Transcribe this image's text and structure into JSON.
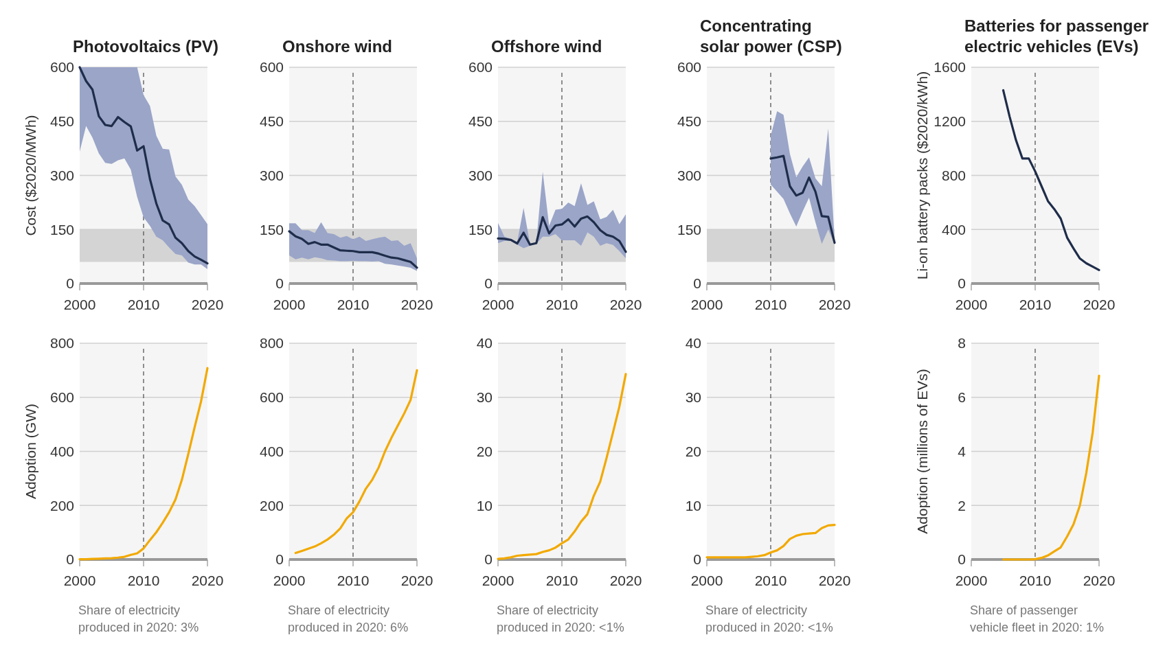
{
  "chart_data": [
    {
      "type": "line",
      "title": "Photovoltaics (PV)",
      "ylabel": "Cost ($2020/MWh)",
      "x": [
        2000,
        2001,
        2002,
        2003,
        2004,
        2005,
        2006,
        2007,
        2008,
        2009,
        2010,
        2011,
        2012,
        2013,
        2014,
        2015,
        2016,
        2017,
        2018,
        2019,
        2020
      ],
      "xlim": [
        2000,
        2020
      ],
      "xticks": [
        2000,
        2010,
        2020
      ],
      "ylim": [
        0,
        600
      ],
      "yticks": [
        0,
        150,
        300,
        450,
        600
      ],
      "grid": "y",
      "series": [
        {
          "color": "#1f2d4a",
          "values": [
            600,
            562,
            538,
            464,
            440,
            437,
            462,
            448,
            436,
            369,
            381,
            290,
            222,
            175,
            164,
            127,
            112,
            90,
            75,
            66,
            56
          ],
          "upper": [
            600,
            600,
            600,
            600,
            600,
            600,
            600,
            600,
            600,
            600,
            523,
            493,
            410,
            374,
            372,
            297,
            274,
            233,
            215,
            190,
            165
          ],
          "lower": [
            366,
            437,
            405,
            361,
            335,
            332,
            342,
            347,
            316,
            240,
            184,
            160,
            130,
            120,
            100,
            82,
            78,
            58,
            53,
            53,
            40
          ]
        }
      ],
      "bands": [
        {
          "axis": "y",
          "from": 60,
          "to": 150,
          "color": "#d4d4d4"
        }
      ],
      "ref_lines": [
        {
          "axis": "x",
          "value": 2010,
          "color": "#555555",
          "line_style": "dashed"
        }
      ]
    },
    {
      "type": "line",
      "title": "Onshore wind",
      "x": [
        2000,
        2001,
        2002,
        2003,
        2004,
        2005,
        2006,
        2007,
        2008,
        2009,
        2010,
        2011,
        2012,
        2013,
        2014,
        2015,
        2016,
        2017,
        2018,
        2019,
        2020
      ],
      "xlim": [
        2000,
        2020
      ],
      "xticks": [
        2000,
        2010,
        2020
      ],
      "ylim": [
        0,
        600
      ],
      "yticks": [
        0,
        150,
        300,
        450,
        600
      ],
      "grid": "y",
      "series": [
        {
          "color": "#1f2d4a",
          "values": [
            145,
            131,
            124,
            110,
            115,
            108,
            108,
            100,
            92,
            91,
            90,
            87,
            87,
            87,
            83,
            77,
            72,
            70,
            65,
            60,
            44
          ],
          "upper": [
            167,
            167,
            148,
            148,
            140,
            170,
            140,
            137,
            127,
            132,
            123,
            130,
            118,
            123,
            127,
            130,
            118,
            120,
            105,
            112,
            70
          ],
          "lower": [
            78,
            67,
            72,
            67,
            73,
            70,
            65,
            64,
            62,
            62,
            63,
            62,
            62,
            61,
            62,
            55,
            53,
            50,
            47,
            44,
            35
          ]
        }
      ],
      "bands": [
        {
          "axis": "y",
          "from": 60,
          "to": 150,
          "color": "#d4d4d4"
        }
      ],
      "ref_lines": [
        {
          "axis": "x",
          "value": 2010,
          "color": "#555555",
          "line_style": "dashed"
        }
      ]
    },
    {
      "type": "line",
      "title": "Offshore wind",
      "x": [
        2000,
        2001,
        2002,
        2003,
        2004,
        2005,
        2006,
        2007,
        2008,
        2009,
        2010,
        2011,
        2012,
        2013,
        2014,
        2015,
        2016,
        2017,
        2018,
        2019,
        2020
      ],
      "xlim": [
        2000,
        2020
      ],
      "xticks": [
        2000,
        2010,
        2020
      ],
      "ylim": [
        0,
        600
      ],
      "yticks": [
        0,
        150,
        300,
        450,
        600
      ],
      "grid": "y",
      "series": [
        {
          "color": "#1f2d4a",
          "values": [
            125,
            124,
            121,
            111,
            141,
            108,
            112,
            184,
            139,
            161,
            164,
            178,
            158,
            180,
            186,
            170,
            148,
            135,
            130,
            118,
            88
          ],
          "upper": [
            168,
            130,
            125,
            115,
            210,
            110,
            115,
            310,
            160,
            205,
            207,
            225,
            215,
            278,
            218,
            228,
            178,
            185,
            205,
            165,
            192
          ],
          "lower": [
            112,
            118,
            118,
            108,
            98,
            105,
            110,
            130,
            130,
            137,
            120,
            120,
            120,
            105,
            142,
            130,
            105,
            112,
            107,
            90,
            70
          ]
        }
      ],
      "bands": [
        {
          "axis": "y",
          "from": 60,
          "to": 150,
          "color": "#d4d4d4"
        }
      ],
      "ref_lines": [
        {
          "axis": "x",
          "value": 2010,
          "color": "#555555",
          "line_style": "dashed"
        }
      ]
    },
    {
      "type": "line",
      "title": "Concentrating solar power (CSP)",
      "xlim": [
        2000,
        2020
      ],
      "xticks": [
        2000,
        2010,
        2020
      ],
      "ylim": [
        0,
        600
      ],
      "yticks": [
        0,
        150,
        300,
        450,
        600
      ],
      "grid": "y",
      "series": [
        {
          "color": "#1f2d4a",
          "x": [
            2010,
            2011,
            2012,
            2013,
            2014,
            2015,
            2016,
            2017,
            2018,
            2019,
            2020
          ],
          "values": [
            347,
            350,
            354,
            270,
            244,
            252,
            294,
            255,
            187,
            185,
            113
          ],
          "upper": [
            410,
            478,
            468,
            360,
            295,
            325,
            350,
            292,
            270,
            430,
            120
          ],
          "lower": [
            275,
            255,
            235,
            195,
            158,
            200,
            238,
            170,
            110,
            150,
            108
          ]
        }
      ],
      "bands": [
        {
          "axis": "y",
          "from": 60,
          "to": 150,
          "color": "#d4d4d4"
        }
      ],
      "ref_lines": [
        {
          "axis": "x",
          "value": 2010,
          "color": "#555555",
          "line_style": "dashed"
        }
      ]
    },
    {
      "type": "line",
      "title": "Batteries for passenger electric vehicles (EVs)",
      "ylabel": "Li-on battery packs ($2020/kWh)",
      "xlim": [
        2000,
        2020
      ],
      "xticks": [
        2000,
        2010,
        2020
      ],
      "ylim": [
        0,
        1600
      ],
      "yticks": [
        0,
        400,
        800,
        1200,
        1600
      ],
      "grid": "y",
      "series": [
        {
          "color": "#1f2d4a",
          "x": [
            2005,
            2006,
            2007,
            2008,
            2009,
            2010,
            2011,
            2012,
            2013,
            2014,
            2015,
            2016,
            2017,
            2018,
            2019,
            2020
          ],
          "values": [
            1430,
            1235,
            1060,
            925,
            925,
            830,
            720,
            610,
            550,
            480,
            340,
            260,
            185,
            150,
            125,
            100
          ]
        }
      ],
      "ref_lines": [
        {
          "axis": "x",
          "value": 2010,
          "color": "#555555",
          "line_style": "dashed"
        }
      ]
    },
    {
      "type": "line",
      "ylabel": "Adoption (GW)",
      "annotations": [
        "Share of electricity produced in 2020: 3%"
      ],
      "x": [
        2000,
        2001,
        2002,
        2003,
        2004,
        2005,
        2006,
        2007,
        2008,
        2009,
        2010,
        2011,
        2012,
        2013,
        2014,
        2015,
        2016,
        2017,
        2018,
        2019,
        2020
      ],
      "xlim": [
        2000,
        2020
      ],
      "xticks": [
        2000,
        2010,
        2020
      ],
      "ylim": [
        0,
        800
      ],
      "yticks": [
        0,
        200,
        400,
        600,
        800
      ],
      "grid": "y",
      "series": [
        {
          "color": "#f2a900",
          "values": [
            1,
            1,
            2,
            3,
            4,
            5,
            7,
            10,
            17,
            23,
            41,
            72,
            101,
            136,
            175,
            222,
            295,
            390,
            490,
            585,
            708
          ]
        }
      ],
      "ref_lines": [
        {
          "axis": "x",
          "value": 2010,
          "color": "#555555",
          "line_style": "dashed"
        }
      ]
    },
    {
      "type": "line",
      "annotations": [
        "Share of electricity produced in 2020: 6%"
      ],
      "xlim": [
        2000,
        2020
      ],
      "xticks": [
        2000,
        2010,
        2020
      ],
      "ylim": [
        0,
        800
      ],
      "yticks": [
        0,
        200,
        400,
        600,
        800
      ],
      "grid": "y",
      "series": [
        {
          "color": "#f2a900",
          "x": [
            2001,
            2002,
            2003,
            2004,
            2005,
            2006,
            2007,
            2008,
            2009,
            2010,
            2011,
            2012,
            2013,
            2014,
            2015,
            2016,
            2017,
            2018,
            2019,
            2020
          ],
          "values": [
            24,
            32,
            40,
            48,
            60,
            74,
            92,
            115,
            152,
            175,
            215,
            262,
            295,
            340,
            400,
            450,
            495,
            540,
            590,
            700
          ]
        }
      ],
      "ref_lines": [
        {
          "axis": "x",
          "value": 2010,
          "color": "#555555",
          "line_style": "dashed"
        }
      ]
    },
    {
      "type": "line",
      "annotations": [
        "Share of electricity produced in 2020: <1%"
      ],
      "x": [
        2000,
        2001,
        2002,
        2003,
        2004,
        2005,
        2006,
        2007,
        2008,
        2009,
        2010,
        2011,
        2012,
        2013,
        2014,
        2015,
        2016,
        2017,
        2018,
        2019,
        2020
      ],
      "xlim": [
        2000,
        2020
      ],
      "xticks": [
        2000,
        2010,
        2020
      ],
      "ylim": [
        0,
        40
      ],
      "yticks": [
        0,
        10,
        20,
        30,
        40
      ],
      "grid": "y",
      "series": [
        {
          "color": "#f2a900",
          "values": [
            0.1,
            0.2,
            0.4,
            0.7,
            0.8,
            0.9,
            1,
            1.4,
            1.7,
            2.2,
            3,
            3.7,
            5.2,
            7,
            8.4,
            11.8,
            14.4,
            18.8,
            23.5,
            28.3,
            34.3
          ]
        }
      ],
      "ref_lines": [
        {
          "axis": "x",
          "value": 2010,
          "color": "#555555",
          "line_style": "dashed"
        }
      ]
    },
    {
      "type": "line",
      "annotations": [
        "Share of electricity produced in 2020: <1%"
      ],
      "x": [
        2000,
        2001,
        2002,
        2003,
        2004,
        2005,
        2006,
        2007,
        2008,
        2009,
        2010,
        2011,
        2012,
        2013,
        2014,
        2015,
        2016,
        2017,
        2018,
        2019,
        2020
      ],
      "xlim": [
        2000,
        2020
      ],
      "xticks": [
        2000,
        2010,
        2020
      ],
      "ylim": [
        0,
        40
      ],
      "yticks": [
        0,
        10,
        20,
        30,
        40
      ],
      "grid": "y",
      "series": [
        {
          "color": "#f2a900",
          "values": [
            0.4,
            0.4,
            0.4,
            0.4,
            0.4,
            0.4,
            0.4,
            0.5,
            0.6,
            0.8,
            1.3,
            1.7,
            2.5,
            3.8,
            4.4,
            4.7,
            4.8,
            4.9,
            5.8,
            6.3,
            6.4
          ]
        }
      ],
      "ref_lines": [
        {
          "axis": "x",
          "value": 2010,
          "color": "#555555",
          "line_style": "dashed"
        }
      ]
    },
    {
      "type": "line",
      "ylabel": "Adoption (millions of EVs)",
      "annotations": [
        "Share of passenger vehicle fleet in 2020: 1%"
      ],
      "xlim": [
        2000,
        2020
      ],
      "xticks": [
        2000,
        2010,
        2020
      ],
      "ylim": [
        0,
        8
      ],
      "yticks": [
        0,
        2,
        4,
        6,
        8
      ],
      "grid": "y",
      "series": [
        {
          "color": "#f2a900",
          "x": [
            2005,
            2006,
            2007,
            2008,
            2009,
            2010,
            2011,
            2012,
            2013,
            2014,
            2015,
            2016,
            2017,
            2018,
            2019,
            2020
          ],
          "values": [
            0,
            0,
            0,
            0,
            0,
            0.01,
            0.06,
            0.15,
            0.3,
            0.45,
            0.85,
            1.3,
            2,
            3.2,
            4.7,
            6.8
          ]
        }
      ],
      "ref_lines": [
        {
          "axis": "x",
          "value": 2010,
          "color": "#555555",
          "line_style": "dashed"
        }
      ]
    }
  ]
}
